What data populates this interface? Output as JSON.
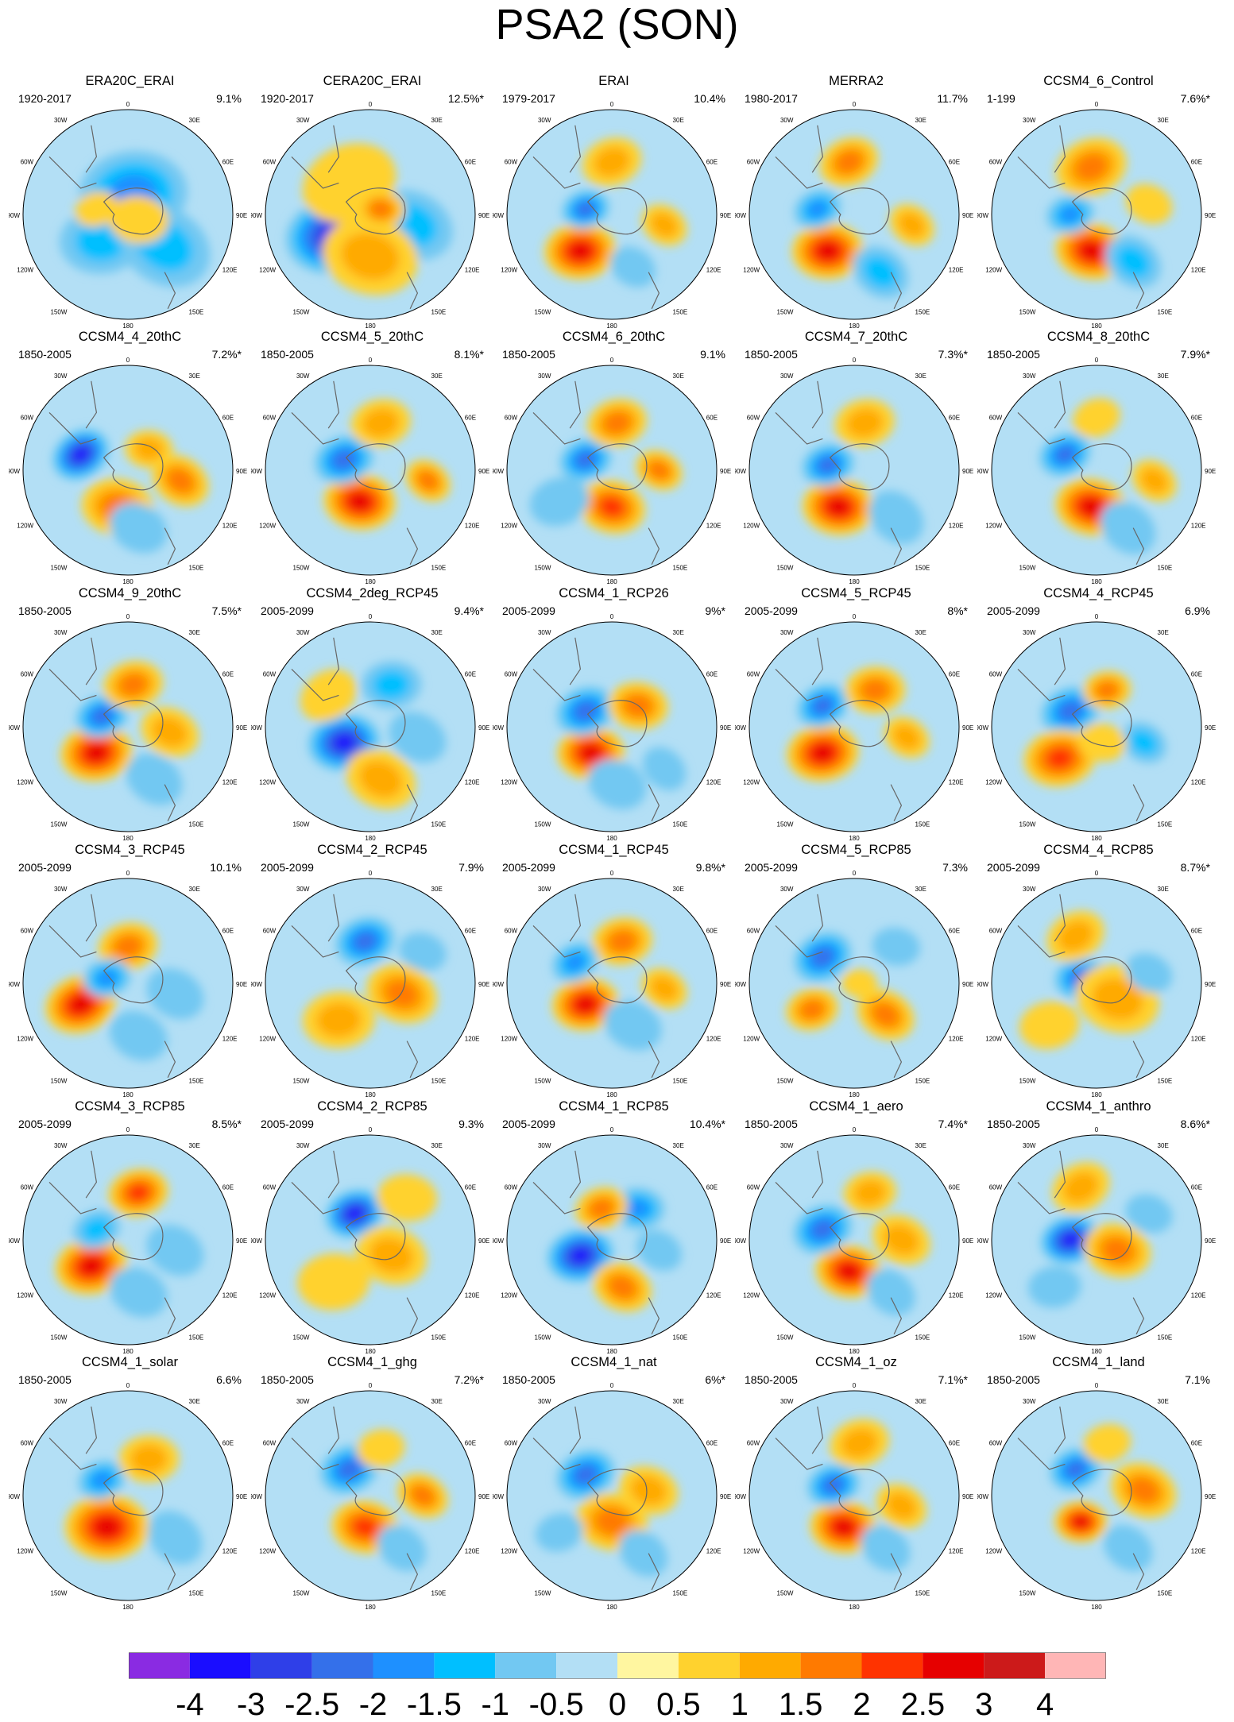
{
  "title": "PSA2 (SON)",
  "axis_labels": {
    "top": "0",
    "ne": "30E",
    "e1": "60E",
    "e2": "90E",
    "e3": "120E",
    "se": "150E",
    "bottom": "180",
    "sw": "150W",
    "w3": "120W",
    "w2": "90W",
    "w1": "60W",
    "nw": "30W"
  },
  "colors": {
    "coast": "#666666",
    "levels": [
      "#8a2be2",
      "#1a0dff",
      "#2f3fe8",
      "#3470ea",
      "#1e90ff",
      "#00bfff",
      "#72c8f2",
      "#b3dff5",
      "#fff6a0",
      "#ffd22e",
      "#ffaa00",
      "#ff7a00",
      "#ff3300",
      "#e60000",
      "#cc1a1a",
      "#ffb6b6"
    ]
  },
  "panels": [
    {
      "name": "ERA20C_ERAI",
      "period": "1920-2017",
      "pct": "9.1%",
      "blobs": [
        {
          "dx": 0.05,
          "dy": -0.2,
          "r": 0.45,
          "v": -1.5
        },
        {
          "dx": -0.25,
          "dy": 0.25,
          "r": 0.35,
          "v": -1.2
        },
        {
          "dx": 0.35,
          "dy": 0.3,
          "r": 0.4,
          "v": -1.2
        },
        {
          "dx": -0.3,
          "dy": -0.05,
          "r": 0.18,
          "v": 0.6
        },
        {
          "dx": 0.1,
          "dy": 0.05,
          "r": 0.25,
          "v": 0.5
        }
      ]
    },
    {
      "name": "CERA20C_ERAI",
      "period": "1920-2017",
      "pct": "12.5%*",
      "blobs": [
        {
          "dx": -0.35,
          "dy": 0.2,
          "r": 0.4,
          "v": -3.5
        },
        {
          "dx": 0.4,
          "dy": 0.1,
          "r": 0.35,
          "v": -1.2
        },
        {
          "dx": -0.2,
          "dy": -0.3,
          "r": 0.4,
          "v": 0.8
        },
        {
          "dx": 0.0,
          "dy": 0.4,
          "r": 0.4,
          "v": 1.0
        },
        {
          "dx": 0.1,
          "dy": -0.05,
          "r": 0.2,
          "v": 1.5
        }
      ]
    },
    {
      "name": "ERAI",
      "period": "1979-2017",
      "pct": "10.4%",
      "blobs": [
        {
          "dx": -0.3,
          "dy": 0.35,
          "r": 0.3,
          "v": 2.8
        },
        {
          "dx": -0.25,
          "dy": -0.05,
          "r": 0.2,
          "v": -2.0
        },
        {
          "dx": 0.0,
          "dy": -0.5,
          "r": 0.25,
          "v": 1.3
        },
        {
          "dx": 0.5,
          "dy": 0.1,
          "r": 0.2,
          "v": 1.2
        },
        {
          "dx": 0.2,
          "dy": 0.5,
          "r": 0.2,
          "v": -0.8
        }
      ]
    },
    {
      "name": "MERRA2",
      "period": "1980-2017",
      "pct": "11.7%",
      "blobs": [
        {
          "dx": -0.25,
          "dy": 0.35,
          "r": 0.3,
          "v": 2.8
        },
        {
          "dx": -0.35,
          "dy": -0.05,
          "r": 0.2,
          "v": -1.8
        },
        {
          "dx": -0.05,
          "dy": -0.5,
          "r": 0.25,
          "v": 1.5
        },
        {
          "dx": 0.55,
          "dy": 0.1,
          "r": 0.2,
          "v": 1.0
        },
        {
          "dx": 0.25,
          "dy": 0.55,
          "r": 0.25,
          "v": -1.2
        }
      ]
    },
    {
      "name": "CCSM4_6_Control",
      "period": "1-199",
      "pct": "7.6%*",
      "blobs": [
        {
          "dx": -0.05,
          "dy": 0.35,
          "r": 0.3,
          "v": 2.8
        },
        {
          "dx": -0.25,
          "dy": 0.0,
          "r": 0.2,
          "v": -1.6
        },
        {
          "dx": -0.05,
          "dy": -0.45,
          "r": 0.3,
          "v": 1.5
        },
        {
          "dx": 0.35,
          "dy": 0.45,
          "r": 0.25,
          "v": -1.2
        },
        {
          "dx": 0.5,
          "dy": -0.1,
          "r": 0.2,
          "v": 0.8
        }
      ]
    },
    {
      "name": "CCSM4_4_20thC",
      "period": "1850-2005",
      "pct": "7.2%*",
      "blobs": [
        {
          "dx": -0.45,
          "dy": -0.15,
          "r": 0.25,
          "v": -3.0
        },
        {
          "dx": -0.1,
          "dy": 0.35,
          "r": 0.3,
          "v": 1.5
        },
        {
          "dx": 0.5,
          "dy": 0.1,
          "r": 0.25,
          "v": 1.5
        },
        {
          "dx": 0.2,
          "dy": -0.2,
          "r": 0.2,
          "v": 1.0
        },
        {
          "dx": 0.1,
          "dy": 0.55,
          "r": 0.25,
          "v": -0.8
        }
      ]
    },
    {
      "name": "CCSM4_5_20thC",
      "period": "1850-2005",
      "pct": "8.1%*",
      "blobs": [
        {
          "dx": -0.1,
          "dy": 0.3,
          "r": 0.3,
          "v": 2.8
        },
        {
          "dx": -0.25,
          "dy": -0.1,
          "r": 0.25,
          "v": -2.0
        },
        {
          "dx": 0.55,
          "dy": 0.1,
          "r": 0.2,
          "v": 1.5
        },
        {
          "dx": 0.1,
          "dy": -0.45,
          "r": 0.25,
          "v": 1.0
        }
      ]
    },
    {
      "name": "CCSM4_6_20thC",
      "period": "1850-2005",
      "pct": "9.1%",
      "blobs": [
        {
          "dx": 0.0,
          "dy": 0.35,
          "r": 0.28,
          "v": 2.2
        },
        {
          "dx": -0.25,
          "dy": -0.1,
          "r": 0.22,
          "v": -2.2
        },
        {
          "dx": 0.05,
          "dy": -0.45,
          "r": 0.25,
          "v": 1.5
        },
        {
          "dx": 0.45,
          "dy": 0.0,
          "r": 0.2,
          "v": 1.5
        },
        {
          "dx": -0.5,
          "dy": 0.3,
          "r": 0.25,
          "v": -0.8
        }
      ]
    },
    {
      "name": "CCSM4_7_20thC",
      "period": "1850-2005",
      "pct": "7.3%*",
      "blobs": [
        {
          "dx": -0.15,
          "dy": 0.35,
          "r": 0.3,
          "v": 2.8
        },
        {
          "dx": -0.25,
          "dy": -0.05,
          "r": 0.22,
          "v": -2.0
        },
        {
          "dx": 0.1,
          "dy": -0.45,
          "r": 0.25,
          "v": 1.0
        },
        {
          "dx": 0.4,
          "dy": 0.45,
          "r": 0.25,
          "v": -0.8
        }
      ]
    },
    {
      "name": "CCSM4_8_20thC",
      "period": "1850-2005",
      "pct": "7.9%*",
      "blobs": [
        {
          "dx": -0.05,
          "dy": 0.35,
          "r": 0.3,
          "v": 2.8
        },
        {
          "dx": -0.3,
          "dy": -0.15,
          "r": 0.22,
          "v": -2.2
        },
        {
          "dx": 0.55,
          "dy": 0.1,
          "r": 0.2,
          "v": 1.2
        },
        {
          "dx": 0.0,
          "dy": -0.5,
          "r": 0.2,
          "v": 0.8
        },
        {
          "dx": 0.3,
          "dy": 0.55,
          "r": 0.25,
          "v": -0.8
        }
      ]
    },
    {
      "name": "CCSM4_9_20thC",
      "period": "1850-2005",
      "pct": "7.5%*",
      "blobs": [
        {
          "dx": -0.3,
          "dy": 0.25,
          "r": 0.3,
          "v": 2.8
        },
        {
          "dx": -0.25,
          "dy": -0.1,
          "r": 0.22,
          "v": -2.2
        },
        {
          "dx": 0.05,
          "dy": -0.4,
          "r": 0.25,
          "v": 1.5
        },
        {
          "dx": 0.4,
          "dy": 0.05,
          "r": 0.25,
          "v": 1.2
        },
        {
          "dx": 0.25,
          "dy": 0.5,
          "r": 0.25,
          "v": -0.8
        }
      ]
    },
    {
      "name": "CCSM4_2deg_RCP45",
      "period": "2005-2099",
      "pct": "9.4%*",
      "blobs": [
        {
          "dx": -0.25,
          "dy": 0.15,
          "r": 0.3,
          "v": -3.0
        },
        {
          "dx": 0.2,
          "dy": -0.4,
          "r": 0.25,
          "v": -1.2
        },
        {
          "dx": 0.1,
          "dy": 0.5,
          "r": 0.3,
          "v": 1.0
        },
        {
          "dx": -0.4,
          "dy": -0.3,
          "r": 0.25,
          "v": 0.6
        },
        {
          "dx": 0.45,
          "dy": 0.1,
          "r": 0.25,
          "v": -0.8
        }
      ]
    },
    {
      "name": "CCSM4_1_RCP26",
      "period": "2005-2099",
      "pct": "9%*",
      "blobs": [
        {
          "dx": -0.2,
          "dy": 0.25,
          "r": 0.28,
          "v": 2.5
        },
        {
          "dx": -0.25,
          "dy": -0.15,
          "r": 0.25,
          "v": -2.2
        },
        {
          "dx": 0.25,
          "dy": -0.2,
          "r": 0.25,
          "v": 1.8
        },
        {
          "dx": 0.05,
          "dy": 0.55,
          "r": 0.25,
          "v": -0.8
        },
        {
          "dx": 0.5,
          "dy": 0.4,
          "r": 0.2,
          "v": -0.6
        }
      ]
    },
    {
      "name": "CCSM4_5_RCP45",
      "period": "2005-2099",
      "pct": "8%*",
      "blobs": [
        {
          "dx": -0.3,
          "dy": 0.25,
          "r": 0.3,
          "v": 2.8
        },
        {
          "dx": -0.3,
          "dy": -0.2,
          "r": 0.22,
          "v": -2.2
        },
        {
          "dx": 0.2,
          "dy": -0.35,
          "r": 0.25,
          "v": 1.5
        },
        {
          "dx": 0.5,
          "dy": 0.1,
          "r": 0.2,
          "v": 1.0
        }
      ]
    },
    {
      "name": "CCSM4_4_RCP45",
      "period": "2005-2099",
      "pct": "6.9%",
      "blobs": [
        {
          "dx": -0.25,
          "dy": -0.15,
          "r": 0.25,
          "v": -2.2
        },
        {
          "dx": -0.35,
          "dy": 0.3,
          "r": 0.3,
          "v": 2.0
        },
        {
          "dx": 0.1,
          "dy": -0.35,
          "r": 0.2,
          "v": 1.5
        },
        {
          "dx": 0.45,
          "dy": 0.15,
          "r": 0.2,
          "v": -1.2
        },
        {
          "dx": 0.05,
          "dy": 0.15,
          "r": 0.2,
          "v": 0.8
        }
      ]
    },
    {
      "name": "CCSM4_3_RCP45",
      "period": "2005-2099",
      "pct": "10.1%",
      "blobs": [
        {
          "dx": -0.45,
          "dy": 0.2,
          "r": 0.3,
          "v": 2.8
        },
        {
          "dx": 0.0,
          "dy": -0.35,
          "r": 0.25,
          "v": 1.8
        },
        {
          "dx": -0.2,
          "dy": -0.05,
          "r": 0.2,
          "v": -1.8
        },
        {
          "dx": 0.45,
          "dy": 0.1,
          "r": 0.25,
          "v": -0.8
        },
        {
          "dx": 0.1,
          "dy": 0.5,
          "r": 0.25,
          "v": -0.6
        }
      ]
    },
    {
      "name": "CCSM4_2_RCP45",
      "period": "2005-2099",
      "pct": "7.9%",
      "blobs": [
        {
          "dx": -0.05,
          "dy": -0.4,
          "r": 0.25,
          "v": -2.2
        },
        {
          "dx": 0.3,
          "dy": 0.1,
          "r": 0.3,
          "v": 1.5
        },
        {
          "dx": -0.3,
          "dy": 0.35,
          "r": 0.3,
          "v": 1.2
        },
        {
          "dx": 0.5,
          "dy": -0.3,
          "r": 0.2,
          "v": -0.6
        }
      ]
    },
    {
      "name": "CCSM4_1_RCP45",
      "period": "2005-2099",
      "pct": "9.8%*",
      "blobs": [
        {
          "dx": -0.25,
          "dy": 0.2,
          "r": 0.28,
          "v": 2.8
        },
        {
          "dx": 0.1,
          "dy": -0.4,
          "r": 0.25,
          "v": 1.5
        },
        {
          "dx": -0.35,
          "dy": -0.2,
          "r": 0.2,
          "v": -1.5
        },
        {
          "dx": 0.5,
          "dy": 0.05,
          "r": 0.2,
          "v": 1.0
        },
        {
          "dx": 0.2,
          "dy": 0.4,
          "r": 0.25,
          "v": -0.8
        }
      ]
    },
    {
      "name": "CCSM4_5_RCP85",
      "period": "2005-2099",
      "pct": "7.3%",
      "blobs": [
        {
          "dx": -0.3,
          "dy": -0.25,
          "r": 0.25,
          "v": -2.2
        },
        {
          "dx": -0.4,
          "dy": 0.25,
          "r": 0.22,
          "v": 1.8
        },
        {
          "dx": 0.3,
          "dy": 0.3,
          "r": 0.25,
          "v": 1.5
        },
        {
          "dx": 0.4,
          "dy": -0.35,
          "r": 0.2,
          "v": -0.8
        },
        {
          "dx": 0.05,
          "dy": 0.0,
          "r": 0.15,
          "v": 0.8
        }
      ]
    },
    {
      "name": "CCSM4_4_RCP85",
      "period": "2005-2099",
      "pct": "8.7%*",
      "blobs": [
        {
          "dx": -0.15,
          "dy": -0.05,
          "r": 0.22,
          "v": -2.2
        },
        {
          "dx": 0.2,
          "dy": 0.15,
          "r": 0.35,
          "v": 1.2
        },
        {
          "dx": -0.2,
          "dy": -0.45,
          "r": 0.25,
          "v": 1.0
        },
        {
          "dx": 0.5,
          "dy": -0.1,
          "r": 0.2,
          "v": -0.8
        },
        {
          "dx": -0.45,
          "dy": 0.4,
          "r": 0.25,
          "v": 0.8
        }
      ]
    },
    {
      "name": "CCSM4_3_RCP85",
      "period": "2005-2099",
      "pct": "8.5%*",
      "blobs": [
        {
          "dx": -0.35,
          "dy": 0.25,
          "r": 0.3,
          "v": 2.8
        },
        {
          "dx": 0.1,
          "dy": -0.45,
          "r": 0.25,
          "v": 2.0
        },
        {
          "dx": -0.3,
          "dy": -0.1,
          "r": 0.2,
          "v": -1.0
        },
        {
          "dx": 0.45,
          "dy": 0.1,
          "r": 0.25,
          "v": -0.8
        },
        {
          "dx": 0.1,
          "dy": 0.5,
          "r": 0.25,
          "v": -0.6
        }
      ]
    },
    {
      "name": "CCSM4_2_RCP85",
      "period": "2005-2099",
      "pct": "9.3%",
      "blobs": [
        {
          "dx": -0.15,
          "dy": -0.25,
          "r": 0.25,
          "v": -3.0
        },
        {
          "dx": 0.2,
          "dy": 0.15,
          "r": 0.3,
          "v": 1.2
        },
        {
          "dx": -0.35,
          "dy": 0.4,
          "r": 0.3,
          "v": 0.8
        },
        {
          "dx": 0.35,
          "dy": -0.4,
          "r": 0.25,
          "v": 0.6
        }
      ]
    },
    {
      "name": "CCSM4_1_RCP85",
      "period": "2005-2099",
      "pct": "10.4%*",
      "blobs": [
        {
          "dx": -0.3,
          "dy": 0.15,
          "r": 0.28,
          "v": -3.0
        },
        {
          "dx": 0.25,
          "dy": -0.3,
          "r": 0.22,
          "v": -1.5
        },
        {
          "dx": -0.1,
          "dy": -0.3,
          "r": 0.22,
          "v": 1.5
        },
        {
          "dx": 0.1,
          "dy": 0.45,
          "r": 0.25,
          "v": 1.5
        },
        {
          "dx": 0.45,
          "dy": 0.1,
          "r": 0.2,
          "v": -0.8
        }
      ]
    },
    {
      "name": "CCSM4_1_aero",
      "period": "1850-2005",
      "pct": "7.4%*",
      "blobs": [
        {
          "dx": -0.05,
          "dy": 0.3,
          "r": 0.28,
          "v": 2.8
        },
        {
          "dx": -0.3,
          "dy": -0.1,
          "r": 0.25,
          "v": -2.2
        },
        {
          "dx": 0.45,
          "dy": 0.0,
          "r": 0.25,
          "v": 1.2
        },
        {
          "dx": 0.15,
          "dy": -0.45,
          "r": 0.22,
          "v": 1.0
        },
        {
          "dx": 0.35,
          "dy": 0.5,
          "r": 0.22,
          "v": -0.8
        }
      ]
    },
    {
      "name": "CCSM4_1_anthro",
      "period": "1850-2005",
      "pct": "8.6%*",
      "blobs": [
        {
          "dx": -0.25,
          "dy": 0.0,
          "r": 0.25,
          "v": -3.0
        },
        {
          "dx": 0.2,
          "dy": 0.1,
          "r": 0.28,
          "v": 1.5
        },
        {
          "dx": -0.15,
          "dy": -0.5,
          "r": 0.25,
          "v": 1.0
        },
        {
          "dx": 0.5,
          "dy": -0.25,
          "r": 0.2,
          "v": -0.8
        },
        {
          "dx": -0.4,
          "dy": 0.45,
          "r": 0.22,
          "v": -0.8
        }
      ]
    },
    {
      "name": "CCSM4_1_solar",
      "period": "1850-2005",
      "pct": "6.6%",
      "blobs": [
        {
          "dx": -0.2,
          "dy": 0.3,
          "r": 0.35,
          "v": 2.5
        },
        {
          "dx": -0.25,
          "dy": -0.15,
          "r": 0.2,
          "v": -1.5
        },
        {
          "dx": 0.2,
          "dy": -0.35,
          "r": 0.25,
          "v": 1.0
        },
        {
          "dx": 0.45,
          "dy": 0.4,
          "r": 0.25,
          "v": -0.8
        }
      ]
    },
    {
      "name": "CCSM4_1_ghg",
      "period": "1850-2005",
      "pct": "7.2%*",
      "blobs": [
        {
          "dx": -0.05,
          "dy": 0.3,
          "r": 0.28,
          "v": 2.2
        },
        {
          "dx": -0.2,
          "dy": -0.25,
          "r": 0.25,
          "v": -2.0
        },
        {
          "dx": 0.5,
          "dy": 0.0,
          "r": 0.22,
          "v": 1.5
        },
        {
          "dx": 0.1,
          "dy": -0.45,
          "r": 0.2,
          "v": 0.8
        },
        {
          "dx": 0.3,
          "dy": 0.5,
          "r": 0.22,
          "v": -0.8
        }
      ]
    },
    {
      "name": "CCSM4_1_nat",
      "period": "1850-2005",
      "pct": "6%*",
      "blobs": [
        {
          "dx": -0.25,
          "dy": -0.2,
          "r": 0.25,
          "v": -2.2
        },
        {
          "dx": 0.0,
          "dy": 0.25,
          "r": 0.3,
          "v": 1.5
        },
        {
          "dx": 0.35,
          "dy": -0.05,
          "r": 0.25,
          "v": 1.0
        },
        {
          "dx": 0.3,
          "dy": 0.55,
          "r": 0.22,
          "v": -0.8
        },
        {
          "dx": -0.5,
          "dy": 0.35,
          "r": 0.2,
          "v": -0.6
        }
      ]
    },
    {
      "name": "CCSM4_1_oz",
      "period": "1850-2005",
      "pct": "7.1%*",
      "blobs": [
        {
          "dx": -0.1,
          "dy": 0.3,
          "r": 0.28,
          "v": 2.8
        },
        {
          "dx": -0.2,
          "dy": -0.1,
          "r": 0.22,
          "v": -2.0
        },
        {
          "dx": 0.05,
          "dy": -0.5,
          "r": 0.25,
          "v": 1.2
        },
        {
          "dx": 0.45,
          "dy": 0.1,
          "r": 0.22,
          "v": 1.0
        },
        {
          "dx": 0.3,
          "dy": 0.5,
          "r": 0.22,
          "v": -0.8
        }
      ]
    },
    {
      "name": "CCSM4_1_land",
      "period": "1850-2005",
      "pct": "7.1%",
      "blobs": [
        {
          "dx": -0.15,
          "dy": 0.25,
          "r": 0.22,
          "v": 2.8
        },
        {
          "dx": -0.2,
          "dy": -0.25,
          "r": 0.22,
          "v": -2.0
        },
        {
          "dx": 0.45,
          "dy": -0.05,
          "r": 0.28,
          "v": 1.5
        },
        {
          "dx": 0.1,
          "dy": -0.5,
          "r": 0.2,
          "v": 0.6
        },
        {
          "dx": 0.3,
          "dy": 0.5,
          "r": 0.22,
          "v": -0.8
        }
      ]
    }
  ],
  "colorbar": {
    "labels": [
      "-4",
      "-3",
      "-2.5",
      "-2",
      "-1.5",
      "-1",
      "-0.5",
      "0",
      "0.5",
      "1",
      "1.5",
      "2",
      "2.5",
      "3",
      "4"
    ]
  }
}
